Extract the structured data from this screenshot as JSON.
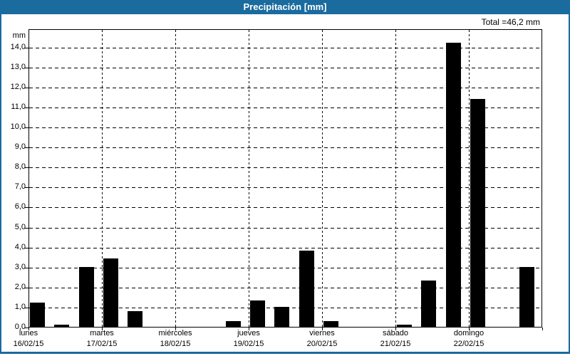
{
  "window": {
    "title": "Precipitación [mm]",
    "accent_color": "#1a6b9e"
  },
  "header": {
    "total_label": "Total =46,2 mm"
  },
  "chart_data": {
    "type": "bar",
    "title": "Precipitación [mm]",
    "xlabel": "",
    "ylabel": "mm",
    "ylim": [
      0,
      15
    ],
    "y_tick_step": 1.0,
    "y_tick_labels": [
      "0,0",
      "1,0",
      "2,0",
      "3,0",
      "4,0",
      "5,0",
      "6,0",
      "7,0",
      "8,0",
      "9,0",
      "10,0",
      "11,0",
      "12,0",
      "13,0",
      "14,0"
    ],
    "grid": true,
    "legend": false,
    "bar_color": "#000000",
    "total_mm": 46.2,
    "slots_per_day": 3,
    "days": [
      {
        "name": "lunes",
        "date": "16/02/15",
        "values": [
          1.2,
          0.1,
          3.0
        ]
      },
      {
        "name": "martes",
        "date": "17/02/15",
        "values": [
          3.4,
          0.8,
          0
        ]
      },
      {
        "name": "miércoles",
        "date": "18/02/15",
        "values": [
          0,
          0,
          0.3
        ]
      },
      {
        "name": "jueves",
        "date": "19/02/15",
        "values": [
          1.3,
          1.0,
          3.8
        ]
      },
      {
        "name": "viernes",
        "date": "20/02/15",
        "values": [
          0.3,
          0,
          0
        ]
      },
      {
        "name": "sábado",
        "date": "21/02/15",
        "values": [
          0.1,
          2.3,
          14.2
        ]
      },
      {
        "name": "domingo",
        "date": "22/02/15",
        "values": [
          11.4,
          0,
          3.0
        ]
      }
    ]
  }
}
